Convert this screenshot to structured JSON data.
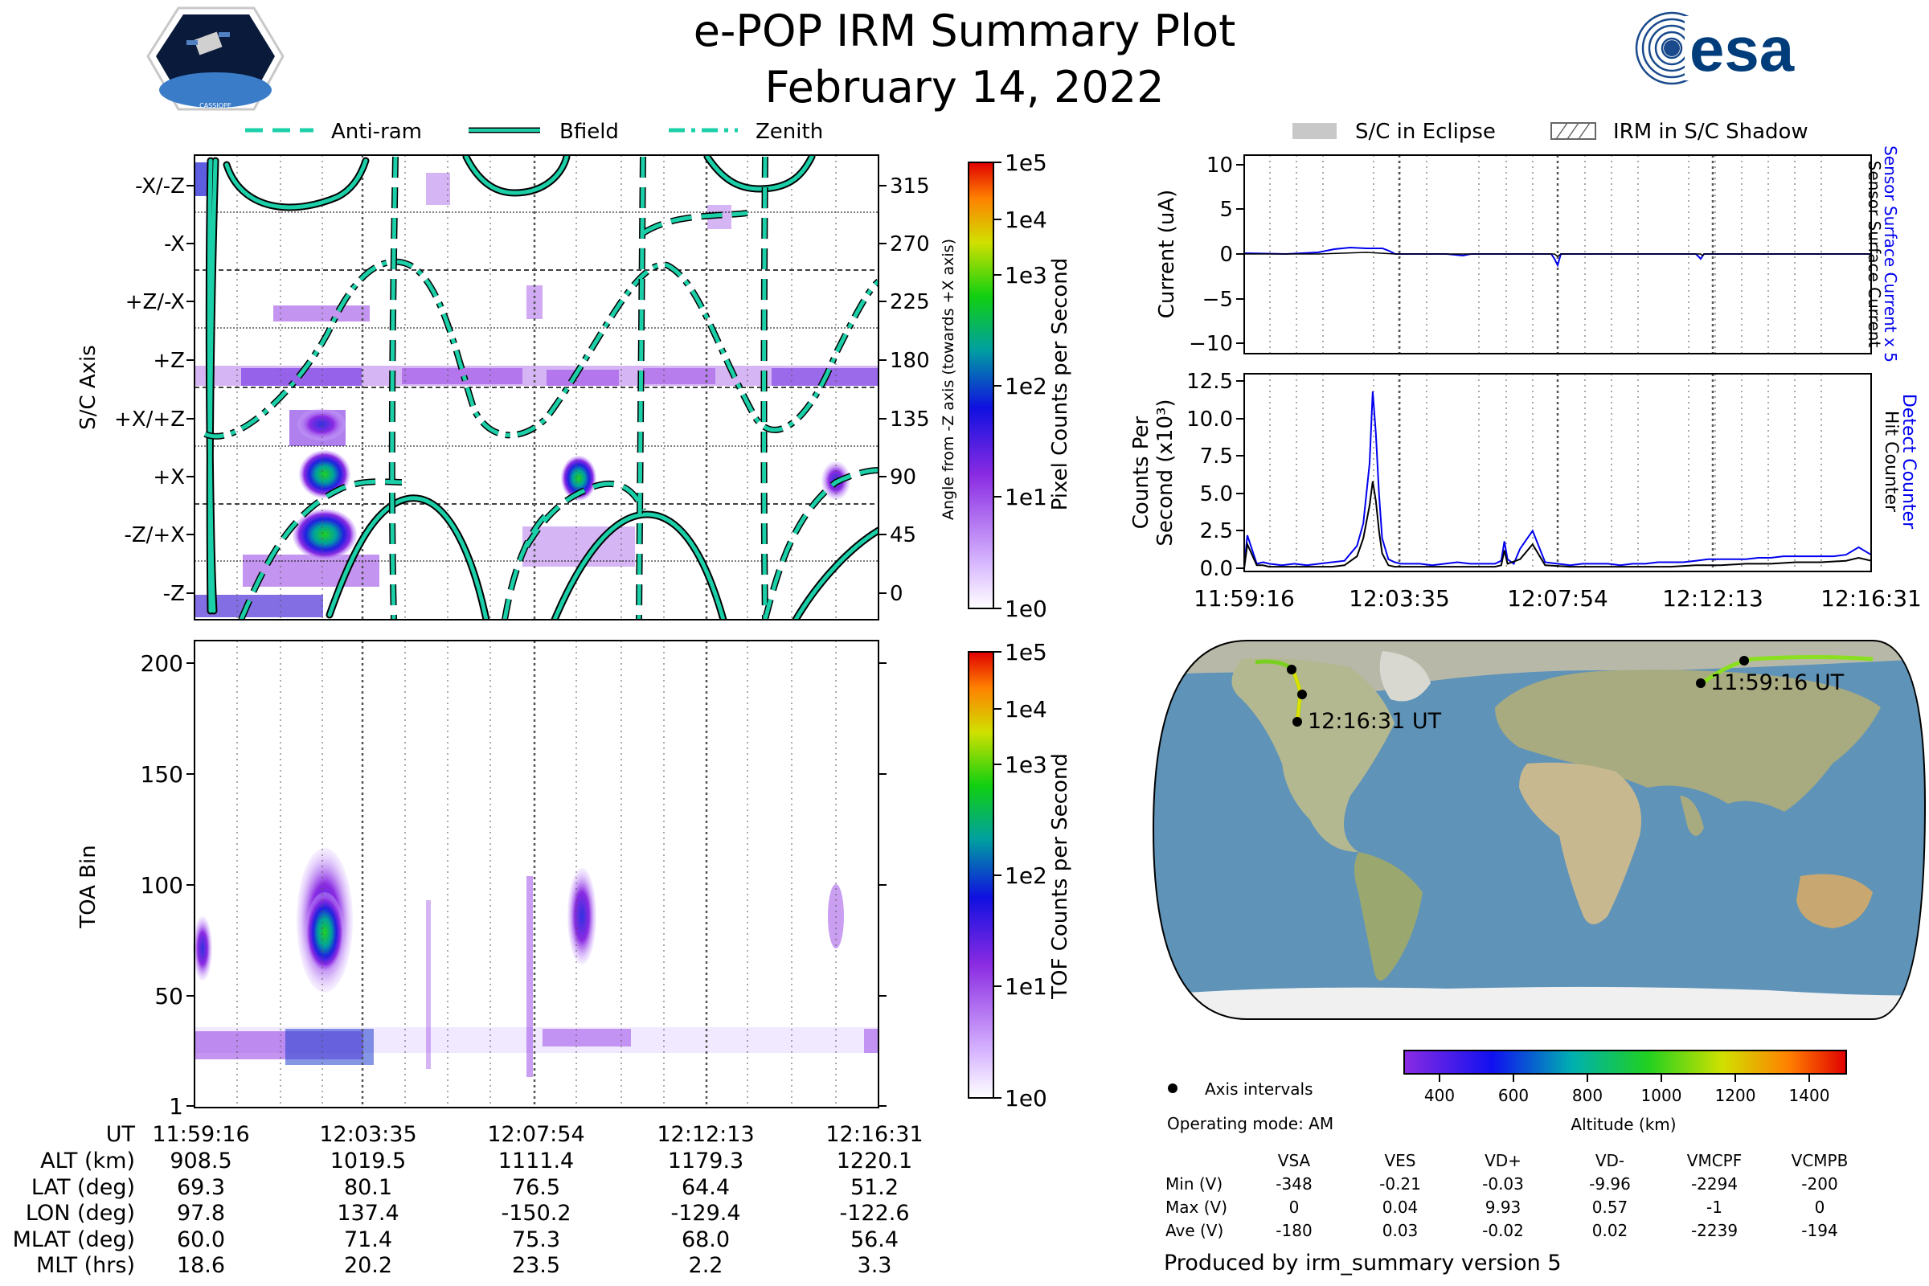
{
  "title": "e-POP IRM Summary Plot",
  "date": "February 14, 2022",
  "logos": {
    "cassiope": "CASSIOPE",
    "esa": "esa"
  },
  "colors": {
    "accent": "#1bcfa8",
    "current_blue": "#0000ee",
    "black": "#000000",
    "eclipse_gray": "#c8c8c8"
  },
  "legend_top": {
    "anti_ram": "Anti-ram",
    "bfield": "Bfield",
    "zenith": "Zenith"
  },
  "legend_right": {
    "eclipse": "S/C in Eclipse",
    "shadow": "IRM in S/C Shadow"
  },
  "chart_data": [
    {
      "id": "pixel-spectrogram",
      "type": "heatmap",
      "ylabel": "S/C Axis",
      "y_categories": [
        "-X/-Z",
        "-X",
        "+Z/-X",
        "+Z",
        "+X/+Z",
        "+X",
        "-Z/+X",
        "-Z"
      ],
      "y2_label": "Angle from -Z axis (towards +X axis)",
      "y2_ticks": [
        "315",
        "270",
        "225",
        "180",
        "135",
        "90",
        "45",
        "0"
      ],
      "colorbar": {
        "label": "Pixel Counts per Second",
        "ticks": [
          "1e5",
          "1e4",
          "1e3",
          "1e2",
          "1e1",
          "1e0"
        ]
      },
      "x_ticks": [
        "11:59:16",
        "12:03:35",
        "12:07:54",
        "12:12:13",
        "12:16:31"
      ]
    },
    {
      "id": "toa-spectrogram",
      "type": "heatmap",
      "ylabel": "TOA Bin",
      "ylim": [
        1,
        210
      ],
      "y_ticks": [
        "200",
        "150",
        "100",
        "50",
        "1"
      ],
      "colorbar": {
        "label": "TOF Counts per Second",
        "ticks": [
          "1e5",
          "1e4",
          "1e3",
          "1e2",
          "1e1",
          "1e0"
        ]
      }
    },
    {
      "id": "sensor-current",
      "type": "line",
      "ylabel": "Current (uA)",
      "ylim": [
        -11,
        11
      ],
      "y_ticks": [
        "10",
        "5",
        "0",
        "−5",
        "−10"
      ],
      "right_label_blue": "Sensor Surface Current x 5",
      "right_label_black": "Sensor Surface Current"
    },
    {
      "id": "counts-per-second",
      "type": "line",
      "ylabel_line1": "Counts Per",
      "ylabel_line2": "Second (x10³)",
      "ylim": [
        0,
        13
      ],
      "y_ticks": [
        "12.5",
        "10.0",
        "7.5",
        "5.0",
        "2.5",
        "0.0"
      ],
      "right_label_blue": "Detect Counter",
      "right_label_black": "Hit Counter",
      "x_ticks": [
        "11:59:16",
        "12:03:35",
        "12:07:54",
        "12:12:13",
        "12:16:31"
      ],
      "series": [
        {
          "name": "Detect Counter",
          "x": [
            0,
            0.5,
            2,
            3,
            4,
            6,
            8,
            10,
            12,
            14,
            16,
            18,
            19,
            20,
            20.5,
            21,
            21.5,
            22,
            23,
            24,
            25,
            26,
            28,
            30,
            32,
            34,
            36,
            38,
            40,
            41,
            41.5,
            42,
            43,
            44,
            46,
            48,
            50,
            52,
            54,
            56,
            58,
            60,
            62,
            64,
            66,
            68,
            70,
            72,
            74,
            76,
            78,
            80,
            82,
            84,
            86,
            88,
            90,
            92,
            94,
            96,
            98,
            100
          ],
          "values": [
            0.1,
            2.2,
            0.3,
            0.4,
            0.3,
            0.2,
            0.3,
            0.2,
            0.3,
            0.4,
            0.5,
            1.5,
            3,
            7,
            11.8,
            9,
            5,
            2,
            0.6,
            0.4,
            0.3,
            0.3,
            0.3,
            0.2,
            0.3,
            0.4,
            0.3,
            0.3,
            0.3,
            0.5,
            1.8,
            0.6,
            0.3,
            1.3,
            2.5,
            0.4,
            0.3,
            0.2,
            0.3,
            0.3,
            0.3,
            0.2,
            0.3,
            0.3,
            0.4,
            0.4,
            0.4,
            0.5,
            0.6,
            0.6,
            0.6,
            0.6,
            0.7,
            0.7,
            0.8,
            0.8,
            0.8,
            0.8,
            0.8,
            0.9,
            1.4,
            0.9
          ]
        },
        {
          "name": "Hit Counter",
          "x": [
            0,
            0.5,
            2,
            3,
            4,
            6,
            8,
            10,
            12,
            14,
            16,
            18,
            19,
            20,
            20.5,
            21,
            21.5,
            22,
            23,
            24,
            26,
            30,
            34,
            38,
            40,
            41,
            41.5,
            42,
            44,
            46,
            48,
            52,
            56,
            60,
            64,
            68,
            72,
            76,
            80,
            84,
            88,
            92,
            96,
            98,
            100
          ],
          "values": [
            0,
            1.6,
            0.2,
            0.2,
            0.1,
            0.1,
            0.1,
            0.1,
            0.1,
            0.1,
            0.2,
            0.8,
            2,
            4.2,
            5.8,
            4.5,
            2.5,
            1,
            0.2,
            0.1,
            0.1,
            0.1,
            0.1,
            0.1,
            0.1,
            0.2,
            1.2,
            0.3,
            0.6,
            1.6,
            0.2,
            0.1,
            0.1,
            0.1,
            0.1,
            0.1,
            0.2,
            0.2,
            0.3,
            0.3,
            0.4,
            0.4,
            0.5,
            0.7,
            0.5
          ]
        }
      ]
    }
  ],
  "map": {
    "start_label": "11:59:16 UT",
    "end_label": "12:16:31 UT",
    "altitude_label": "Altitude (km)",
    "altitude_ticks": [
      "400",
      "600",
      "800",
      "1000",
      "1200",
      "1400"
    ]
  },
  "axis_intervals_label": "Axis intervals",
  "operating_mode": "Operating mode: AM",
  "ephemeris": {
    "labels": [
      "UT",
      "ALT (km)",
      "LAT (deg)",
      "LON (deg)",
      "MLAT (deg)",
      "MLT (hrs)"
    ],
    "columns": [
      [
        "11:59:16",
        "908.5",
        "69.3",
        "97.8",
        "60.0",
        "18.6"
      ],
      [
        "12:03:35",
        "1019.5",
        "80.1",
        "137.4",
        "71.4",
        "20.2"
      ],
      [
        "12:07:54",
        "1111.4",
        "76.5",
        "-150.2",
        "75.3",
        "23.5"
      ],
      [
        "12:12:13",
        "1179.3",
        "64.4",
        "-129.4",
        "68.0",
        "2.2"
      ],
      [
        "12:16:31",
        "1220.1",
        "51.2",
        "-122.6",
        "56.4",
        "3.3"
      ]
    ]
  },
  "voltages": {
    "headers": [
      "VSA",
      "VES",
      "VD+",
      "VD-",
      "VMCPF",
      "VCMPB"
    ],
    "rows": [
      {
        "label": "Min (V)",
        "values": [
          "-348",
          "-0.21",
          "-0.03",
          "-9.96",
          "-2294",
          "-200"
        ]
      },
      {
        "label": "Max (V)",
        "values": [
          "0",
          "0.04",
          "9.93",
          "0.57",
          "-1",
          "0"
        ]
      },
      {
        "label": "Ave (V)",
        "values": [
          "-180",
          "0.03",
          "-0.02",
          "0.02",
          "-2239",
          "-194"
        ]
      }
    ]
  },
  "footer": "Produced by irm_summary version 5"
}
